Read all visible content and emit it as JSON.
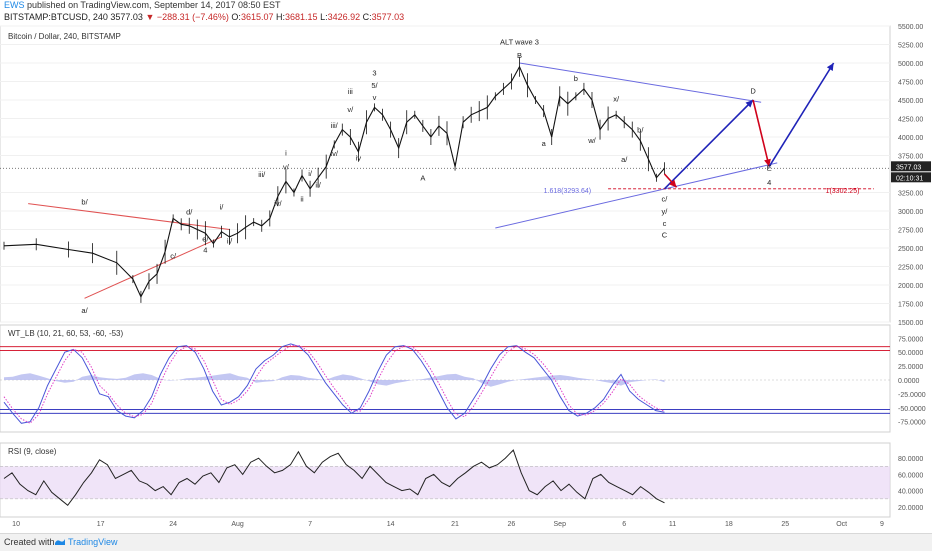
{
  "header": {
    "user": "EWS",
    "published": "published on TradingView.com, September 14, 2017 08:50 EST",
    "symbol": "BITSTAMP:BTCUSD, 240",
    "last": "3577.03",
    "change": "▼ −288.31 (−7.46%)",
    "ohlc": [
      {
        "label": "O:",
        "value": "3615.07"
      },
      {
        "label": "H:",
        "value": "3681.15"
      },
      {
        "label": "L:",
        "value": "3426.92"
      },
      {
        "label": "C:",
        "value": "3577.03"
      }
    ]
  },
  "footer": {
    "created": "Created with",
    "brand": "TradingView"
  },
  "colors": {
    "bull_arrow": "#1f23b8",
    "bear_arrow": "#d0021b",
    "wedge": "#6a6ae0",
    "triangle": "#e05252",
    "rsi_band": "#e9d8f5",
    "wt_fill": "#b8bdf0",
    "wt_dots": "#e040c8"
  },
  "chart_data": [
    {
      "type": "line",
      "title": "Bitcoin / Dollar, 240, BITSTAMP",
      "x_ticks": [
        "10",
        "17",
        "24",
        "Aug",
        "7",
        "14",
        "21",
        "26",
        "Sep",
        "6",
        "11",
        "18",
        "25",
        "Oct",
        "9"
      ],
      "ylim": [
        1500,
        5500
      ],
      "y_ticks": [
        "5500.00",
        "5250.00",
        "5000.00",
        "4750.00",
        "4500.00",
        "4250.00",
        "4000.00",
        "3750.00",
        "3250.00",
        "3000.00",
        "2750.00",
        "2500.00",
        "2250.00",
        "2000.00",
        "1750.00",
        "1500.00"
      ],
      "last_price_label": "3577.03",
      "countdown_label": "02:10:31",
      "price_series": [
        {
          "t": 0,
          "v": 2530
        },
        {
          "t": 4,
          "v": 2550
        },
        {
          "t": 8,
          "v": 2480
        },
        {
          "t": 11,
          "v": 2430
        },
        {
          "t": 14,
          "v": 2300
        },
        {
          "t": 16,
          "v": 2080
        },
        {
          "t": 17,
          "v": 1840
        },
        {
          "t": 18,
          "v": 2050
        },
        {
          "t": 19,
          "v": 2150
        },
        {
          "t": 20,
          "v": 2450
        },
        {
          "t": 21,
          "v": 2900
        },
        {
          "t": 22,
          "v": 2820
        },
        {
          "t": 23,
          "v": 2800
        },
        {
          "t": 24,
          "v": 2750
        },
        {
          "t": 25,
          "v": 2700
        },
        {
          "t": 26,
          "v": 2560
        },
        {
          "t": 27,
          "v": 2720
        },
        {
          "t": 28,
          "v": 2650
        },
        {
          "t": 29,
          "v": 2700
        },
        {
          "t": 30,
          "v": 2780
        },
        {
          "t": 31,
          "v": 2850
        },
        {
          "t": 32,
          "v": 2800
        },
        {
          "t": 33,
          "v": 2900
        },
        {
          "t": 34,
          "v": 3200
        },
        {
          "t": 35,
          "v": 3400
        },
        {
          "t": 36,
          "v": 3250
        },
        {
          "t": 37,
          "v": 3480
        },
        {
          "t": 38,
          "v": 3300
        },
        {
          "t": 39,
          "v": 3450
        },
        {
          "t": 40,
          "v": 3600
        },
        {
          "t": 41,
          "v": 3900
        },
        {
          "t": 42,
          "v": 4100
        },
        {
          "t": 43,
          "v": 4000
        },
        {
          "t": 44,
          "v": 3800
        },
        {
          "t": 45,
          "v": 4200
        },
        {
          "t": 46,
          "v": 4400
        },
        {
          "t": 47,
          "v": 4300
        },
        {
          "t": 48,
          "v": 4100
        },
        {
          "t": 49,
          "v": 3850
        },
        {
          "t": 50,
          "v": 4200
        },
        {
          "t": 51,
          "v": 4300
        },
        {
          "t": 52,
          "v": 4150
        },
        {
          "t": 53,
          "v": 4000
        },
        {
          "t": 54,
          "v": 4150
        },
        {
          "t": 55,
          "v": 4050
        },
        {
          "t": 56,
          "v": 3600
        },
        {
          "t": 57,
          "v": 4200
        },
        {
          "t": 58,
          "v": 4300
        },
        {
          "t": 59,
          "v": 4350
        },
        {
          "t": 60,
          "v": 4400
        },
        {
          "t": 61,
          "v": 4550
        },
        {
          "t": 62,
          "v": 4650
        },
        {
          "t": 63,
          "v": 4750
        },
        {
          "t": 64,
          "v": 4950
        },
        {
          "t": 65,
          "v": 4700
        },
        {
          "t": 66,
          "v": 4500
        },
        {
          "t": 67,
          "v": 4350
        },
        {
          "t": 68,
          "v": 4000
        },
        {
          "t": 69,
          "v": 4550
        },
        {
          "t": 70,
          "v": 4450
        },
        {
          "t": 71,
          "v": 4550
        },
        {
          "t": 72,
          "v": 4650
        },
        {
          "t": 73,
          "v": 4500
        },
        {
          "t": 74,
          "v": 4100
        },
        {
          "t": 75,
          "v": 4250
        },
        {
          "t": 76,
          "v": 4300
        },
        {
          "t": 77,
          "v": 4200
        },
        {
          "t": 78,
          "v": 4100
        },
        {
          "t": 79,
          "v": 3950
        },
        {
          "t": 80,
          "v": 3700
        },
        {
          "t": 81,
          "v": 3450
        },
        {
          "t": 82,
          "v": 3577
        }
      ],
      "projection_bull": [
        {
          "t": 82,
          "v": 3300
        },
        {
          "t": 93,
          "v": 4500
        }
      ],
      "projection_bear": [
        {
          "t": 93,
          "v": 4500
        },
        {
          "t": 95,
          "v": 3600
        }
      ],
      "projection_bull_final": [
        {
          "t": 95,
          "v": 3600
        },
        {
          "t": 103,
          "v": 5000
        }
      ],
      "wave_labels": [
        {
          "text": "ALT wave 3",
          "t": 64,
          "v": 5250
        },
        {
          "text": "B",
          "t": 64,
          "v": 5070
        },
        {
          "text": "b",
          "t": 71,
          "v": 4760
        },
        {
          "text": "D",
          "t": 93,
          "v": 4590
        },
        {
          "text": "x/",
          "t": 76,
          "v": 4480
        },
        {
          "text": "b/",
          "t": 79,
          "v": 4060
        },
        {
          "text": "w/",
          "t": 73,
          "v": 3920
        },
        {
          "text": "a",
          "t": 67,
          "v": 3880
        },
        {
          "text": "a/",
          "t": 77,
          "v": 3660
        },
        {
          "text": "E",
          "t": 95,
          "v": 3550
        },
        {
          "text": "4",
          "t": 95,
          "v": 3350
        },
        {
          "text": "c/",
          "t": 82,
          "v": 3130
        },
        {
          "text": "y/",
          "t": 82,
          "v": 2960
        },
        {
          "text": "c",
          "t": 82,
          "v": 2800
        },
        {
          "text": "C",
          "t": 82,
          "v": 2640
        },
        {
          "text": "3",
          "t": 46,
          "v": 4830
        },
        {
          "text": "5/",
          "t": 46,
          "v": 4660
        },
        {
          "text": "v",
          "t": 46,
          "v": 4500
        },
        {
          "text": "iii",
          "t": 43,
          "v": 4580
        },
        {
          "text": "v/",
          "t": 43,
          "v": 4340
        },
        {
          "text": "iii/",
          "t": 41,
          "v": 4120
        },
        {
          "text": "iv/",
          "t": 41,
          "v": 3740
        },
        {
          "text": "iv",
          "t": 44,
          "v": 3680
        },
        {
          "text": "A",
          "t": 52,
          "v": 3410
        },
        {
          "text": "i",
          "t": 35,
          "v": 3750
        },
        {
          "text": "v/",
          "t": 35,
          "v": 3560
        },
        {
          "text": "i/",
          "t": 38,
          "v": 3470
        },
        {
          "text": "iii/",
          "t": 32,
          "v": 3460
        },
        {
          "text": "ii/",
          "t": 39,
          "v": 3320
        },
        {
          "text": "iv/",
          "t": 34,
          "v": 3070
        },
        {
          "text": "ii",
          "t": 37,
          "v": 3130
        },
        {
          "text": "i/",
          "t": 27,
          "v": 3020
        },
        {
          "text": "ii/",
          "t": 28,
          "v": 2560
        },
        {
          "text": "b/",
          "t": 10,
          "v": 3090
        },
        {
          "text": "d/",
          "t": 23,
          "v": 2950
        },
        {
          "text": "e/",
          "t": 25,
          "v": 2590
        },
        {
          "text": "4",
          "t": 25,
          "v": 2440
        },
        {
          "text": "c/",
          "t": 21,
          "v": 2360
        },
        {
          "text": "a/",
          "t": 10,
          "v": 1620
        }
      ],
      "fib_labels": [
        {
          "text": "1.618(3293.64)",
          "v": 3294
        },
        {
          "text": "1(3302.25)",
          "v": 3302
        }
      ]
    },
    {
      "type": "line",
      "title": "WT_LB (10, 21, 60, 53, -60, -53)",
      "ylim": [
        -90,
        90
      ],
      "y_ticks": [
        "75.0000",
        "50.0000",
        "25.0000",
        "0.0000",
        "-25.0000",
        "-50.0000",
        "-75.0000"
      ],
      "levels": [
        60,
        53,
        -60,
        -53
      ],
      "series": [
        {
          "values": [
            -40,
            -60,
            -78,
            -75,
            -50,
            -10,
            20,
            50,
            55,
            40,
            10,
            -25,
            -30,
            -55,
            -65,
            -68,
            -55,
            -30,
            10,
            40,
            60,
            62,
            50,
            20,
            -20,
            -45,
            -40,
            -30,
            -10,
            20,
            35,
            45,
            60,
            65,
            60,
            45,
            20,
            -5,
            -25,
            -45,
            -60,
            -50,
            -20,
            15,
            45,
            60,
            62,
            55,
            35,
            10,
            -20,
            -50,
            -70,
            -60,
            -35,
            -10,
            20,
            45,
            60,
            62,
            50,
            40,
            20,
            0,
            -30,
            -55,
            -65,
            -60,
            -50,
            -35,
            -10,
            10,
            -20,
            -35,
            -45,
            -55,
            -58
          ]
        },
        {
          "values": [
            -30,
            -52,
            -70,
            -78,
            -62,
            -25,
            5,
            35,
            55,
            50,
            25,
            -10,
            -25,
            -45,
            -60,
            -66,
            -62,
            -42,
            -5,
            28,
            52,
            60,
            56,
            35,
            0,
            -35,
            -44,
            -36,
            -20,
            5,
            28,
            40,
            52,
            62,
            62,
            52,
            32,
            8,
            -15,
            -35,
            -55,
            -56,
            -34,
            0,
            30,
            52,
            61,
            60,
            45,
            22,
            -5,
            -35,
            -62,
            -66,
            -48,
            -22,
            5,
            32,
            52,
            61,
            56,
            46,
            30,
            10,
            -15,
            -45,
            -62,
            -63,
            -55,
            -42,
            -22,
            2,
            -8,
            -28,
            -40,
            -50,
            -56
          ]
        }
      ],
      "histogram": [
        5,
        6,
        10,
        12,
        8,
        3,
        -2,
        -5,
        -3,
        6,
        9,
        5,
        3,
        2,
        4,
        10,
        12,
        9,
        2,
        -1,
        0,
        3,
        4,
        6,
        8,
        10,
        12,
        7,
        4,
        -5,
        -3,
        -2,
        5,
        9,
        8,
        4,
        2,
        0,
        6,
        10,
        8,
        3,
        -2,
        -8,
        -10,
        -6,
        -3,
        0,
        1,
        4,
        7,
        10,
        11,
        6,
        3,
        -6,
        -12,
        -8,
        -3,
        0,
        2,
        4,
        6,
        8,
        9,
        7,
        4,
        2,
        0,
        -3,
        -6,
        -10,
        -4,
        -2,
        0,
        1,
        -4
      ]
    },
    {
      "type": "line",
      "title": "RSI (9, close)",
      "ylim": [
        10,
        95
      ],
      "y_ticks": [
        "80.0000",
        "60.0000",
        "40.0000",
        "20.0000"
      ],
      "band": [
        30,
        70
      ],
      "values": [
        55,
        62,
        48,
        40,
        35,
        52,
        38,
        30,
        22,
        35,
        50,
        62,
        78,
        72,
        55,
        60,
        65,
        52,
        48,
        40,
        45,
        35,
        50,
        55,
        48,
        58,
        62,
        50,
        68,
        72,
        60,
        75,
        80,
        70,
        62,
        65,
        72,
        88,
        70,
        62,
        75,
        82,
        86,
        72,
        65,
        55,
        70,
        60,
        50,
        45,
        40,
        42,
        35,
        55,
        60,
        50,
        45,
        55,
        62,
        70,
        75,
        68,
        72,
        80,
        90,
        62,
        40,
        35,
        45,
        52,
        40,
        48,
        38,
        30,
        55,
        60,
        50,
        45,
        40,
        35,
        45,
        38,
        30,
        25
      ]
    }
  ]
}
